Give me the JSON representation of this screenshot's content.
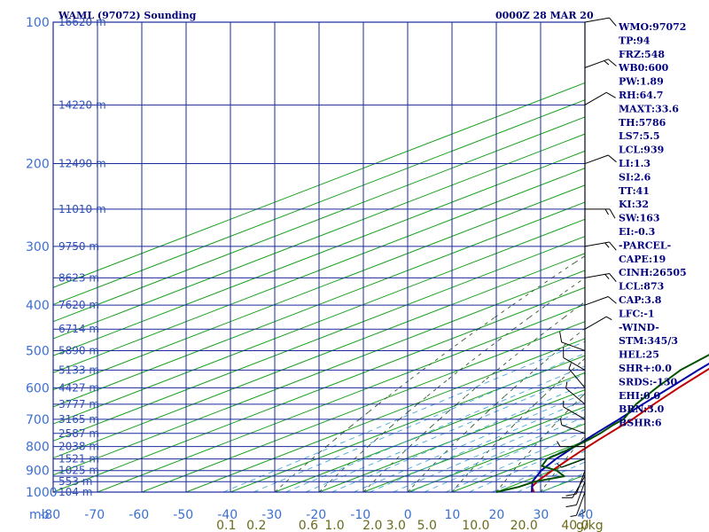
{
  "header": {
    "title": "WAML (97072) Sounding",
    "time": "0000Z 28 MAR 20"
  },
  "chart_data": {
    "type": "line",
    "title": "WAML (97072) Sounding",
    "pressure_unit_label": "mb",
    "mixing_ratio_unit_label": "g/kg",
    "pressure_ticks": [
      100,
      200,
      300,
      400,
      500,
      600,
      700,
      800,
      900,
      1000
    ],
    "pressure_lines": [
      100,
      150,
      200,
      250,
      300,
      350,
      400,
      450,
      500,
      550,
      600,
      650,
      700,
      750,
      800,
      850,
      900,
      925,
      950,
      1000
    ],
    "temperature_ticks": [
      -80,
      -70,
      -60,
      -50,
      -40,
      -30,
      -20,
      -10,
      0,
      10,
      20,
      30,
      40
    ],
    "xlim": [
      -80,
      40
    ],
    "ylim": [
      100,
      1000
    ],
    "y_scale": "log",
    "height_labels": [
      {
        "p": 100,
        "text": "16620 m"
      },
      {
        "p": 150,
        "text": "14220 m"
      },
      {
        "p": 200,
        "text": "12490 m"
      },
      {
        "p": 250,
        "text": "11010 m"
      },
      {
        "p": 300,
        "text": "9750 m"
      },
      {
        "p": 350,
        "text": "8623 m"
      },
      {
        "p": 400,
        "text": "7620 m"
      },
      {
        "p": 450,
        "text": "6714 m"
      },
      {
        "p": 500,
        "text": "5890 m"
      },
      {
        "p": 550,
        "text": "5133 m"
      },
      {
        "p": 600,
        "text": "4427 m"
      },
      {
        "p": 650,
        "text": "3777 m"
      },
      {
        "p": 700,
        "text": "3165 m"
      },
      {
        "p": 750,
        "text": "2587 m"
      },
      {
        "p": 800,
        "text": "2038 m"
      },
      {
        "p": 850,
        "text": "1521 m"
      },
      {
        "p": 900,
        "text": "1025 m"
      },
      {
        "p": 950,
        "text": "553 m"
      },
      {
        "p": 1000,
        "text": "104 m"
      }
    ],
    "mixing_ratio_labels": [
      {
        "value": 0.1,
        "text": "0.1"
      },
      {
        "value": 0.2,
        "text": "0.2"
      },
      {
        "value": 0.6,
        "text": "0.6"
      },
      {
        "value": 1.0,
        "text": "1.0"
      },
      {
        "value": 2.0,
        "text": "2.0"
      },
      {
        "value": 3.0,
        "text": "3.0"
      },
      {
        "value": 5.0,
        "text": "5.0"
      },
      {
        "value": 10.0,
        "text": "10.0"
      },
      {
        "value": 20.0,
        "text": "20.0"
      },
      {
        "value": 40.0,
        "text": "40.0"
      }
    ],
    "series": [
      {
        "color": "#c00000",
        "points": [
          [
            1000,
            28.5
          ],
          [
            975,
            25
          ],
          [
            950,
            23
          ],
          [
            925,
            21.5
          ],
          [
            900,
            20
          ],
          [
            875,
            18.5
          ],
          [
            850,
            17
          ],
          [
            825,
            15.5
          ],
          [
            800,
            14
          ],
          [
            775,
            12.5
          ],
          [
            750,
            11
          ],
          [
            725,
            9.5
          ],
          [
            700,
            8
          ],
          [
            650,
            4
          ],
          [
            600,
            0
          ],
          [
            550,
            -4
          ],
          [
            500,
            -8
          ],
          [
            475,
            -10
          ],
          [
            450,
            -12
          ],
          [
            440,
            -12.5
          ],
          [
            425,
            -14
          ],
          [
            400,
            -16
          ],
          [
            350,
            -22
          ],
          [
            300,
            -30
          ],
          [
            250,
            -40
          ],
          [
            200,
            -51
          ],
          [
            150,
            -64
          ],
          [
            100,
            -80
          ]
        ]
      },
      {
        "color": "#0000a8",
        "points": [
          [
            1000,
            28
          ],
          [
            950,
            22
          ],
          [
            900,
            17.5
          ],
          [
            850,
            14
          ],
          [
            800,
            11
          ],
          [
            750,
            8
          ],
          [
            700,
            5
          ],
          [
            650,
            1.5
          ],
          [
            600,
            -2
          ],
          [
            550,
            -6
          ],
          [
            500,
            -10
          ],
          [
            450,
            -14.5
          ],
          [
            400,
            -19
          ],
          [
            350,
            -25
          ],
          [
            300,
            -32
          ],
          [
            250,
            -42
          ],
          [
            200,
            -53
          ],
          [
            150,
            -67
          ],
          [
            100,
            -84
          ]
        ]
      },
      {
        "color": "#005000",
        "points": [
          [
            1000,
            20
          ],
          [
            975,
            22
          ],
          [
            950,
            22.5
          ],
          [
            925,
            26
          ],
          [
            900,
            21
          ],
          [
            880,
            15
          ],
          [
            850,
            12
          ],
          [
            820,
            11.5
          ],
          [
            800,
            11
          ],
          [
            770,
            10
          ],
          [
            750,
            9
          ],
          [
            720,
            7
          ],
          [
            700,
            6
          ],
          [
            650,
            0
          ],
          [
            600,
            -5
          ],
          [
            550,
            -10
          ],
          [
            510,
            -12.5
          ],
          [
            500,
            -13
          ],
          [
            475,
            -18.5
          ],
          [
            450,
            -19
          ],
          [
            425,
            -25
          ],
          [
            400,
            -35
          ],
          [
            395,
            -27
          ],
          [
            385,
            -37
          ],
          [
            350,
            -42
          ],
          [
            300,
            -36
          ],
          [
            270,
            -41
          ],
          [
            250,
            -46
          ]
        ]
      }
    ]
  },
  "side_panel": {
    "items": [
      "WMO:97072",
      "TP:94",
      "FRZ:548",
      "WB0:600",
      "PW:1.89",
      "RH:64.7",
      "MAXT:33.6",
      "TH:5786",
      "LS7:5.5",
      "LCL:939",
      "LI:1.3",
      "SI:2.6",
      "TT:41",
      "KI:32",
      "SW:163",
      "EI:-0.3",
      "-PARCEL-",
      "CAPE:19",
      "CINH:26505",
      "LCL:873",
      "CAP:3.8",
      "LFC:-1",
      "-WIND-",
      "STM:345/3",
      "HEL:25",
      "SHR+:0.0",
      "SRDS:-130",
      "EHI:0.0",
      "BRN:3.0",
      "BSHR:6"
    ]
  },
  "wind_barbs": [
    {
      "p": 1000,
      "dir": 200,
      "spd": 5
    },
    {
      "p": 975,
      "dir": 180,
      "spd": 5
    },
    {
      "p": 950,
      "dir": 200,
      "spd": 10
    },
    {
      "p": 925,
      "dir": 210,
      "spd": 10
    },
    {
      "p": 900,
      "dir": 200,
      "spd": 10
    },
    {
      "p": 850,
      "dir": 250,
      "spd": 5
    },
    {
      "p": 800,
      "dir": 270,
      "spd": 5
    },
    {
      "p": 750,
      "dir": 290,
      "spd": 5
    },
    {
      "p": 700,
      "dir": 300,
      "spd": 5
    },
    {
      "p": 650,
      "dir": 310,
      "spd": 5
    },
    {
      "p": 600,
      "dir": 320,
      "spd": 5
    },
    {
      "p": 550,
      "dir": 300,
      "spd": 10
    },
    {
      "p": 500,
      "dir": 290,
      "spd": 10
    },
    {
      "p": 450,
      "dir": 60,
      "spd": 5
    },
    {
      "p": 400,
      "dir": 70,
      "spd": 10
    },
    {
      "p": 350,
      "dir": 80,
      "spd": 15
    },
    {
      "p": 300,
      "dir": 80,
      "spd": 15
    },
    {
      "p": 250,
      "dir": 90,
      "spd": 15
    },
    {
      "p": 200,
      "dir": 70,
      "spd": 10
    },
    {
      "p": 150,
      "dir": 60,
      "spd": 10
    },
    {
      "p": 125,
      "dir": 70,
      "spd": 15
    },
    {
      "p": 100,
      "dir": 80,
      "spd": 10
    }
  ]
}
